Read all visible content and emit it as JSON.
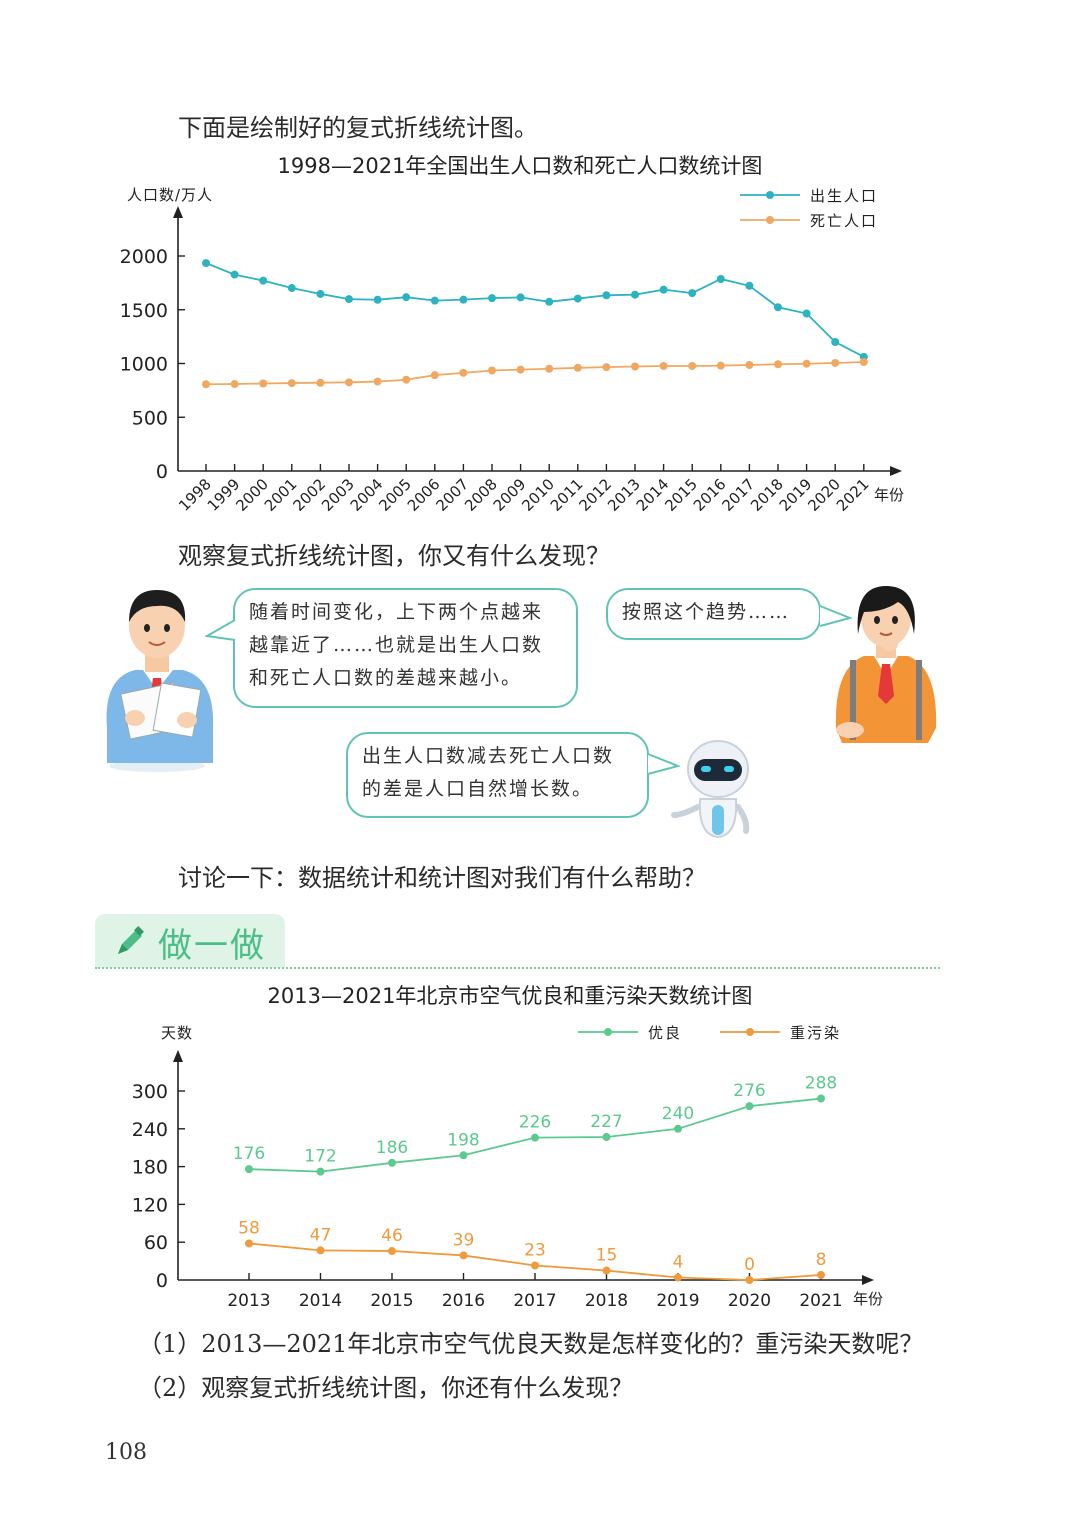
{
  "intro_text": "下面是绘制好的复式折线统计图。",
  "observe_text": "观察复式折线统计图，你又有什么发现？",
  "discuss_text": "讨论一下：数据统计和统计图对我们有什么帮助？",
  "section_label": "做一做",
  "bubbles": {
    "boy_line1": "随着时间变化，上下两个点越来",
    "boy_line2": "越靠近了……也就是出生人口数",
    "boy_line3": "和死亡人口数的差越来越小。",
    "girl": "按照这个趋势……",
    "robot_line1": "出生人口数减去死亡人口数",
    "robot_line2": "的差是人口自然增长数。"
  },
  "questions": {
    "q1": "（1）2013—2021年北京市空气优良天数是怎样变化的？重污染天数呢？",
    "q2": "（2）观察复式折线统计图，你还有什么发现？"
  },
  "page_number": "108",
  "colors": {
    "births": "#2bb3c0",
    "deaths": "#f0a860",
    "good": "#5cc98f",
    "heavy": "#f09a3c"
  },
  "chart_data": [
    {
      "type": "line",
      "title": "1998—2021年全国出生人口数和死亡人口数统计图",
      "ylabel": "人口数/万人",
      "xlabel": "年份",
      "ylim": [
        0,
        2000
      ],
      "yticks": [
        0,
        500,
        1000,
        1500,
        2000
      ],
      "categories": [
        "1998",
        "1999",
        "2000",
        "2001",
        "2002",
        "2003",
        "2004",
        "2005",
        "2006",
        "2007",
        "2008",
        "2009",
        "2010",
        "2011",
        "2012",
        "2013",
        "2014",
        "2015",
        "2016",
        "2017",
        "2018",
        "2019",
        "2020",
        "2021"
      ],
      "series": [
        {
          "name": "出生人口",
          "values": [
            1934,
            1827,
            1771,
            1702,
            1647,
            1599,
            1593,
            1617,
            1585,
            1594,
            1608,
            1615,
            1574,
            1604,
            1635,
            1640,
            1687,
            1655,
            1786,
            1723,
            1523,
            1465,
            1200,
            1062
          ]
        },
        {
          "name": "死亡人口",
          "values": [
            807,
            809,
            814,
            818,
            821,
            825,
            832,
            849,
            892,
            913,
            935,
            943,
            951,
            960,
            966,
            972,
            977,
            977,
            980,
            986,
            993,
            998,
            1005,
            1014
          ]
        }
      ],
      "legend": "top-right"
    },
    {
      "type": "line",
      "title": "2013—2021年北京市空气优良和重污染天数统计图",
      "ylabel": "天数",
      "xlabel": "年份",
      "ylim": [
        0,
        300
      ],
      "yticks": [
        0,
        60,
        120,
        180,
        240,
        300
      ],
      "categories": [
        "2013",
        "2014",
        "2015",
        "2016",
        "2017",
        "2018",
        "2019",
        "2020",
        "2021"
      ],
      "series": [
        {
          "name": "优良",
          "values": [
            176,
            172,
            186,
            198,
            226,
            227,
            240,
            276,
            288
          ]
        },
        {
          "name": "重污染",
          "values": [
            58,
            47,
            46,
            39,
            23,
            15,
            4,
            0,
            8
          ]
        }
      ],
      "legend": "top-right"
    }
  ]
}
